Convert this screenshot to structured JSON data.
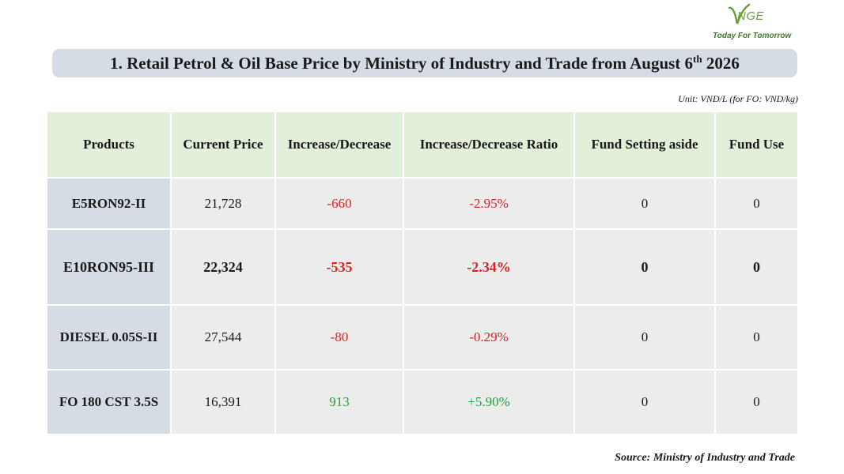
{
  "logo": {
    "word": "NGE",
    "tagline": "Today For Tomorrow"
  },
  "title": {
    "text": "1. Retail Petrol & Oil Base Price by Ministry of Industry and Trade from August 6",
    "ordinal": "th",
    "year": "2026"
  },
  "unit_note": "Unit: VND/L (for FO: VND/kg)",
  "table": {
    "headers": [
      "Products",
      "Current Price",
      "Increase/Decrease",
      "Increase/Decrease Ratio",
      "Fund Setting aside",
      "Fund Use"
    ],
    "rows": [
      {
        "product": "E5RON92-II",
        "price": "21,728",
        "change": "-660",
        "ratio": "-2.95%",
        "fund_aside": "0",
        "fund_use": "0"
      },
      {
        "product": "E10RON95-III",
        "price": "22,324",
        "change": "-535",
        "ratio": "-2.34%",
        "fund_aside": "0",
        "fund_use": "0"
      },
      {
        "product": "DIESEL 0.05S-II",
        "price": "27,544",
        "change": "-80",
        "ratio": "-0.29%",
        "fund_aside": "0",
        "fund_use": "0"
      },
      {
        "product": "FO 180 CST 3.5S",
        "price": "16,391",
        "change": "913",
        "ratio": "+5.90%",
        "fund_aside": "0",
        "fund_use": "0"
      }
    ]
  },
  "source": "Source: Ministry of Industry and Trade",
  "colors": {
    "header_bg": "#e2efd9",
    "product_bg": "#d6dce4",
    "cell_bg": "#ececec",
    "negative": "#e02020",
    "positive": "#1fa33a",
    "brand": "#6a9e3a"
  }
}
